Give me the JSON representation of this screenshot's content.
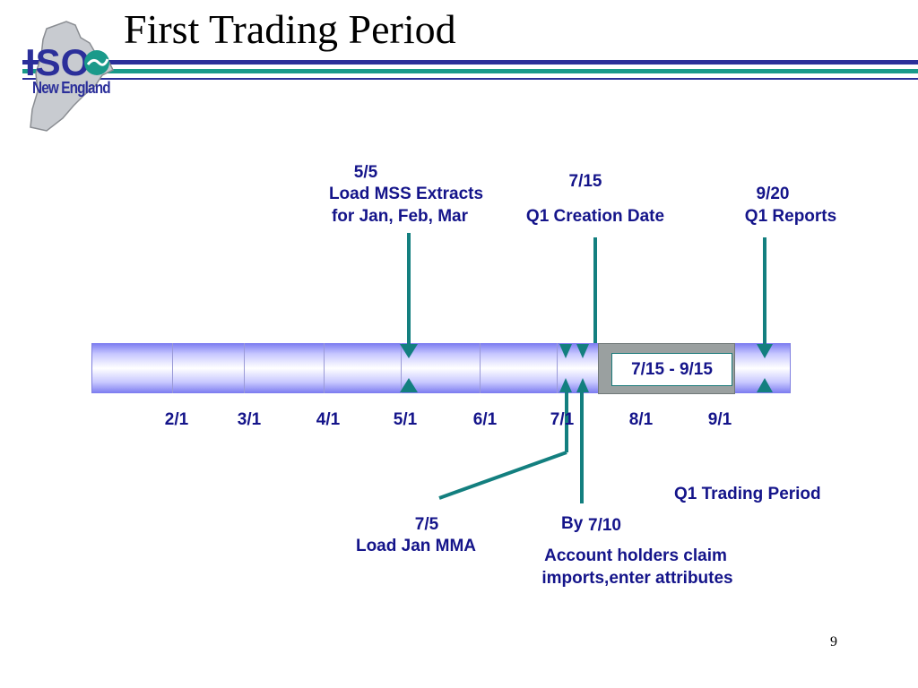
{
  "slide": {
    "title": "First Trading Period",
    "page_number": "9"
  },
  "logo": {
    "text": "New England",
    "mark": "ISO"
  },
  "colors": {
    "stripe_navy": "#2b2f9a",
    "stripe_teal": "#1a9a8a",
    "arrow_teal": "#137f7f",
    "label_navy": "#14148a"
  },
  "timeline": {
    "dates": [
      "2/1",
      "3/1",
      "4/1",
      "5/1",
      "6/1",
      "7/1",
      "8/1",
      "9/1"
    ],
    "period_box": "7/15 - 9/15"
  },
  "events_above": [
    {
      "date": "5/5",
      "line1": "Load MSS Extracts",
      "line2": "for Jan, Feb, Mar"
    },
    {
      "date": "7/15",
      "line1": "Q1 Creation Date"
    },
    {
      "date": "9/20",
      "line1": "Q1 Reports"
    }
  ],
  "events_below": [
    {
      "date": "7/5",
      "line1": "Load Jan MMA"
    },
    {
      "prefix": "By",
      "date": "7/10",
      "line1": "Account holders claim",
      "line2": "imports,enter attributes"
    }
  ],
  "legend": {
    "period_label": "Q1 Trading Period"
  }
}
